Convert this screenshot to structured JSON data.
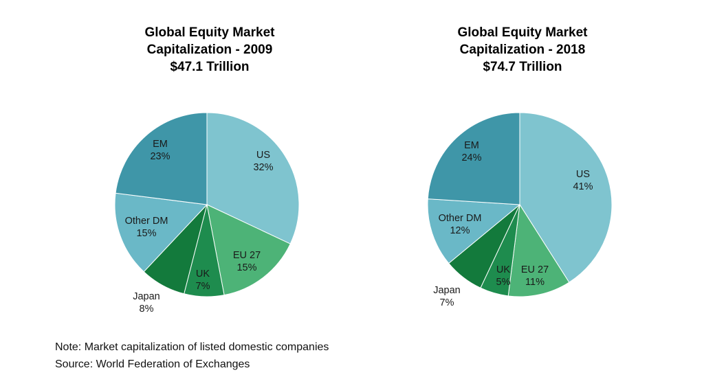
{
  "chart_data": [
    {
      "type": "pie",
      "title": [
        "Global Equity Market",
        "Capitalization  - 2009",
        "$47.1 Trillion"
      ],
      "slices": [
        {
          "label": "US",
          "value": 32,
          "display": "32%",
          "color": "#7fc4cf"
        },
        {
          "label": "EU 27",
          "value": 15,
          "display": "15%",
          "color": "#4db377"
        },
        {
          "label": "UK",
          "value": 7,
          "display": "7%",
          "color": "#1e8c4e"
        },
        {
          "label": "Japan",
          "value": 8,
          "display": "8%",
          "color": "#137a3c"
        },
        {
          "label": "Other DM",
          "value": 15,
          "display": "15%",
          "color": "#6ab8c7"
        },
        {
          "label": "EM",
          "value": 23,
          "display": "23%",
          "color": "#3f96a8"
        }
      ]
    },
    {
      "type": "pie",
      "title": [
        "Global Equity Market",
        "Capitalization  - 2018",
        "$74.7 Trillion"
      ],
      "slices": [
        {
          "label": "US",
          "value": 41,
          "display": "41%",
          "color": "#7fc4cf"
        },
        {
          "label": "EU 27",
          "value": 11,
          "display": "11%",
          "color": "#4db377"
        },
        {
          "label": "UK",
          "value": 5,
          "display": "5%",
          "color": "#1e8c4e"
        },
        {
          "label": "Japan",
          "value": 7,
          "display": "7%",
          "color": "#137a3c"
        },
        {
          "label": "Other DM",
          "value": 12,
          "display": "12%",
          "color": "#6ab8c7"
        },
        {
          "label": "EM",
          "value": 24,
          "display": "24%",
          "color": "#3f96a8"
        }
      ]
    }
  ],
  "footnote": {
    "note": "Note: Market capitalization of listed domestic companies",
    "source": "Source: World Federation of Exchanges"
  }
}
